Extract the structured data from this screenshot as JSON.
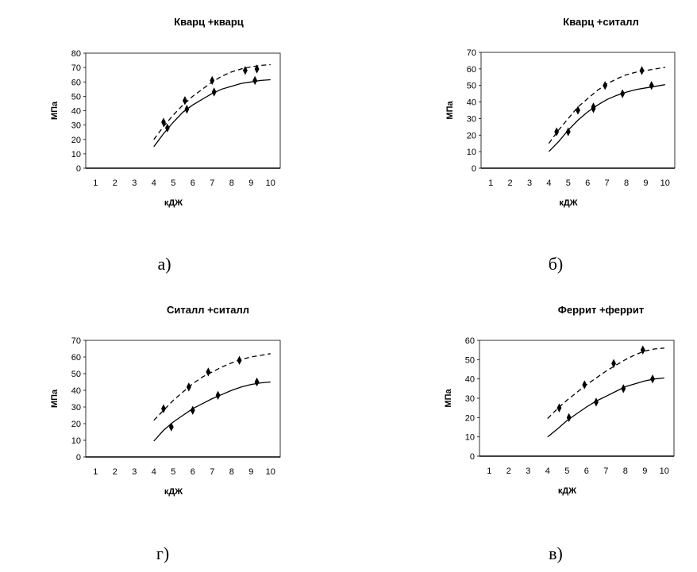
{
  "chart_data": [
    {
      "type": "line",
      "title": "Кварц +кварц",
      "caption": "а)",
      "xlabel": "кДЖ",
      "ylabel": "МПа",
      "x_ticks": [
        "1",
        "2",
        "3",
        "4",
        "5",
        "6",
        "7",
        "8",
        "9",
        "10"
      ],
      "y_ticks": [
        "0",
        "10",
        "20",
        "30",
        "40",
        "50",
        "60",
        "70",
        "80"
      ],
      "ylim": [
        0,
        80
      ],
      "xlim": [
        0.5,
        10.5
      ],
      "grid": false,
      "series": [
        {
          "style": "dashed",
          "x": [
            4.0,
            4.5,
            5.0,
            5.5,
            6.0,
            6.5,
            7.0,
            7.5,
            8.0,
            8.5,
            9.0,
            9.5,
            10.0
          ],
          "values": [
            20,
            29,
            37,
            44,
            50,
            55,
            60,
            64,
            67,
            69,
            70.5,
            71.5,
            72
          ],
          "markers_x": [
            4.5,
            5.6,
            7.0,
            8.7,
            9.3
          ],
          "markers_y": [
            32,
            47,
            61,
            68,
            69
          ]
        },
        {
          "style": "solid",
          "x": [
            4.0,
            4.5,
            5.0,
            5.5,
            6.0,
            6.5,
            7.0,
            7.5,
            8.0,
            8.5,
            9.0,
            9.5,
            10.0
          ],
          "values": [
            15,
            24,
            32,
            39,
            44,
            48,
            52,
            55,
            57,
            59,
            60,
            61,
            61.5
          ],
          "markers_x": [
            4.7,
            5.7,
            7.1,
            9.2
          ],
          "markers_y": [
            28,
            41,
            53,
            61
          ]
        }
      ]
    },
    {
      "type": "line",
      "title": "Кварц +ситалл",
      "caption": "б)",
      "xlabel": "кДЖ",
      "ylabel": "МПа",
      "x_ticks": [
        "1",
        "2",
        "3",
        "4",
        "5",
        "6",
        "7",
        "8",
        "9",
        "10"
      ],
      "y_ticks": [
        "0",
        "10",
        "20",
        "30",
        "40",
        "50",
        "60",
        "70"
      ],
      "ylim": [
        0,
        70
      ],
      "xlim": [
        0.5,
        10.5
      ],
      "grid": false,
      "series": [
        {
          "style": "dashed",
          "x": [
            4.0,
            4.5,
            5.0,
            5.5,
            6.0,
            6.5,
            7.0,
            7.5,
            8.0,
            8.5,
            9.0,
            9.5,
            10.0
          ],
          "values": [
            15,
            23,
            30,
            37,
            42,
            47,
            51,
            54,
            56.5,
            58,
            59,
            60,
            61
          ],
          "markers_x": [
            4.4,
            5.5,
            6.3,
            6.9,
            8.8
          ],
          "markers_y": [
            22,
            35,
            37,
            50,
            59
          ]
        },
        {
          "style": "solid",
          "x": [
            4.0,
            4.5,
            5.0,
            5.5,
            6.0,
            6.5,
            7.0,
            7.5,
            8.0,
            8.5,
            9.0,
            9.5,
            10.0
          ],
          "values": [
            10,
            16,
            23,
            29,
            34,
            38,
            41.5,
            44,
            46,
            47.5,
            48.5,
            49.5,
            50.5
          ],
          "markers_x": [
            5.0,
            6.3,
            7.8,
            9.3
          ],
          "markers_y": [
            22,
            36,
            45,
            50
          ]
        }
      ]
    },
    {
      "type": "line",
      "title": "Ситалл +ситалл",
      "caption": "г)",
      "xlabel": "кДЖ",
      "ylabel": "МПа",
      "x_ticks": [
        "1",
        "2",
        "3",
        "4",
        "5",
        "6",
        "7",
        "8",
        "9",
        "10"
      ],
      "y_ticks": [
        "0",
        "10",
        "20",
        "30",
        "40",
        "50",
        "60",
        "70"
      ],
      "ylim": [
        0,
        70
      ],
      "xlim": [
        0.5,
        10.5
      ],
      "grid": false,
      "series": [
        {
          "style": "dashed",
          "x": [
            4.0,
            4.5,
            5.0,
            5.5,
            6.0,
            6.5,
            7.0,
            7.5,
            8.0,
            8.5,
            9.0,
            9.5,
            10.0
          ],
          "values": [
            22,
            28,
            34,
            39,
            44,
            48,
            51,
            54,
            56.5,
            58.5,
            60,
            61,
            62
          ],
          "markers_x": [
            4.5,
            5.8,
            6.8,
            8.4
          ],
          "markers_y": [
            29,
            42,
            51,
            58
          ]
        },
        {
          "style": "solid",
          "x": [
            4.0,
            4.5,
            5.0,
            5.5,
            6.0,
            6.5,
            7.0,
            7.5,
            8.0,
            8.5,
            9.0,
            9.5,
            10.0
          ],
          "values": [
            9.5,
            16,
            21,
            25,
            29,
            32,
            35,
            37.5,
            40,
            42,
            43.5,
            44.5,
            45
          ],
          "markers_x": [
            4.9,
            6.0,
            7.3,
            9.3
          ],
          "markers_y": [
            18,
            28,
            37,
            45
          ]
        }
      ]
    },
    {
      "type": "line",
      "title": "Феррит +феррит",
      "caption": "в)",
      "xlabel": "кДЖ",
      "ylabel": "МПа",
      "x_ticks": [
        "1",
        "2",
        "3",
        "4",
        "5",
        "6",
        "7",
        "8",
        "9",
        "10"
      ],
      "y_ticks": [
        "0",
        "10",
        "20",
        "30",
        "40",
        "50",
        "60"
      ],
      "ylim": [
        0,
        60
      ],
      "xlim": [
        0.5,
        10.5
      ],
      "grid": false,
      "series": [
        {
          "style": "dashed",
          "x": [
            4.0,
            4.5,
            5.0,
            5.5,
            6.0,
            6.5,
            7.0,
            7.5,
            8.0,
            8.5,
            9.0,
            9.5,
            10.0
          ],
          "values": [
            19.5,
            24.5,
            29,
            33,
            37,
            40.5,
            44,
            47,
            50,
            52.5,
            54.5,
            55.5,
            56
          ],
          "markers_x": [
            4.6,
            5.9,
            7.4,
            8.9
          ],
          "markers_y": [
            25,
            37,
            48,
            55
          ]
        },
        {
          "style": "solid",
          "x": [
            4.0,
            4.5,
            5.0,
            5.5,
            6.0,
            6.5,
            7.0,
            7.5,
            8.0,
            8.5,
            9.0,
            9.5,
            10.0
          ],
          "values": [
            10,
            14,
            18.5,
            22,
            25.5,
            28.5,
            31,
            33.5,
            36,
            37.5,
            39,
            40,
            40.5
          ],
          "markers_x": [
            5.1,
            6.5,
            7.9,
            9.4
          ],
          "markers_y": [
            20,
            28,
            35,
            40
          ]
        }
      ]
    }
  ]
}
